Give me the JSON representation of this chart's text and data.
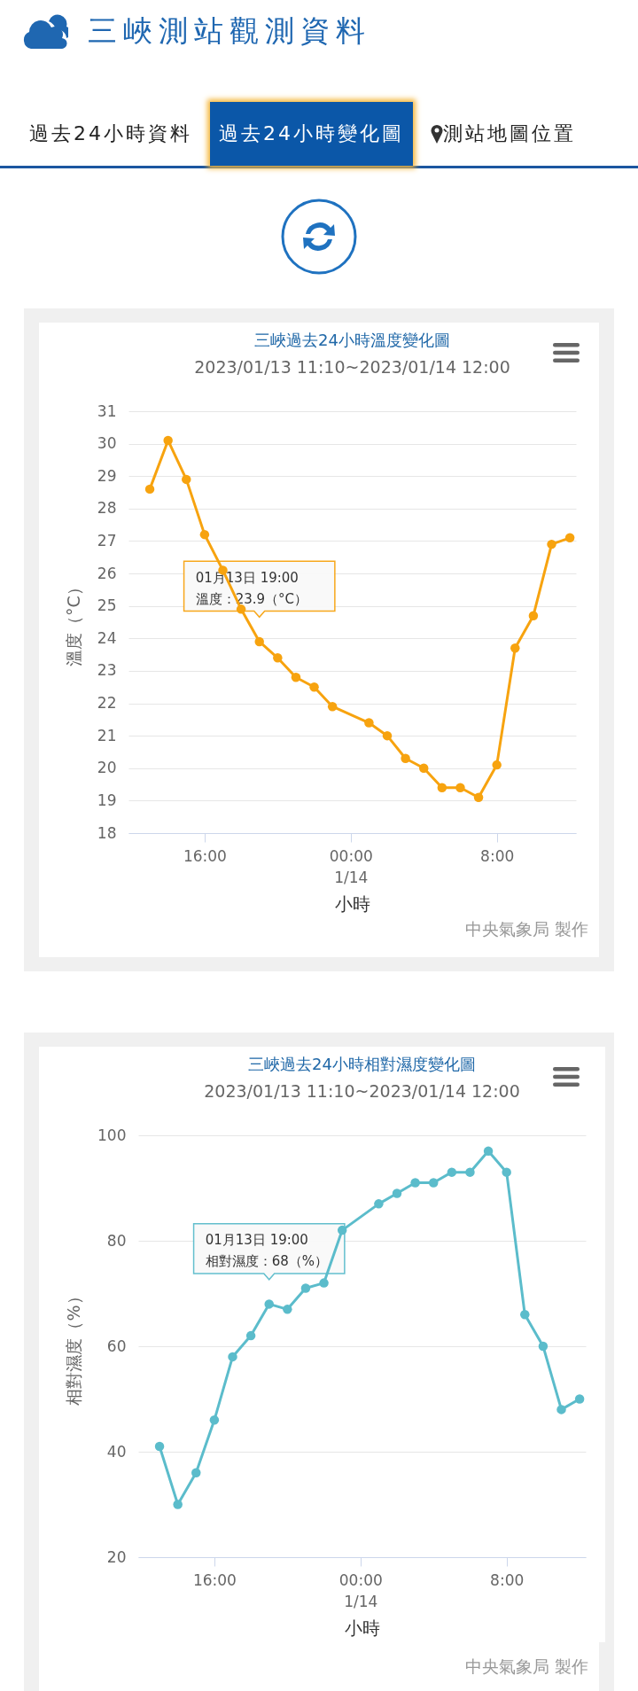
{
  "chart_data": [
    {
      "type": "other",
      "title": "三峽測站觀測資料",
      "annotations": [
        "過去24小時資料",
        "過去24小時變化圖",
        "測站地圖位置"
      ]
    },
    {
      "type": "line",
      "title": "三峽過去24小時溫度變化圖",
      "subtitle": "2023/01/13 11:10~2023/01/14 12:00",
      "xlabel": "小時",
      "ylabel": "溫度（°C）",
      "x": [
        "2023-01-13T13:00",
        "2023-01-13T14:00",
        "2023-01-13T15:00",
        "2023-01-13T16:00",
        "2023-01-13T17:00",
        "2023-01-13T18:00",
        "2023-01-13T19:00",
        "2023-01-13T20:00",
        "2023-01-13T21:00",
        "2023-01-13T22:00",
        "2023-01-13T23:00",
        "2023-01-14T01:00",
        "2023-01-14T02:00",
        "2023-01-14T03:00",
        "2023-01-14T04:00",
        "2023-01-14T05:00",
        "2023-01-14T06:00",
        "2023-01-14T07:00",
        "2023-01-14T08:00",
        "2023-01-14T09:00",
        "2023-01-14T10:00",
        "2023-01-14T11:00",
        "2023-01-14T12:00"
      ],
      "series": [
        {
          "color": "#f7a30f",
          "values": [
            28.6,
            30.1,
            28.9,
            27.2,
            26.1,
            24.9,
            23.9,
            23.4,
            22.8,
            22.5,
            21.9,
            21.4,
            21.0,
            20.3,
            20.0,
            19.4,
            19.4,
            19.1,
            20.1,
            23.7,
            24.7,
            26.9,
            27.1
          ]
        }
      ],
      "xlim": [
        "2023-01-13T11:50",
        "2023-01-14T12:20"
      ],
      "xticks": [
        {
          "value": "2023-01-13T16:00",
          "label": "16:00"
        },
        {
          "value": "2023-01-14T00:00",
          "label": "00:00\n1/14"
        },
        {
          "value": "2023-01-14T08:00",
          "label": "8:00"
        }
      ],
      "ylim": [
        18,
        31
      ],
      "yticks": [
        18,
        19,
        20,
        21,
        22,
        23,
        24,
        25,
        26,
        27,
        28,
        29,
        30,
        31
      ],
      "grid": "y",
      "marker": "circle",
      "annotations": [
        "中央氣象局 製作",
        {
          "text": "01月13日 19:00\n溫度：23.9（°C）",
          "x": "2023-01-13T19:00",
          "y": 23.9
        }
      ]
    },
    {
      "type": "line",
      "title": "三峽過去24小時相對濕度變化圖",
      "subtitle": "2023/01/13 11:10~2023/01/14 12:00",
      "xlabel": "小時",
      "ylabel": "相對濕度（%）",
      "x": [
        "2023-01-13T13:00",
        "2023-01-13T14:00",
        "2023-01-13T15:00",
        "2023-01-13T16:00",
        "2023-01-13T17:00",
        "2023-01-13T18:00",
        "2023-01-13T19:00",
        "2023-01-13T20:00",
        "2023-01-13T21:00",
        "2023-01-13T22:00",
        "2023-01-13T23:00",
        "2023-01-14T01:00",
        "2023-01-14T02:00",
        "2023-01-14T03:00",
        "2023-01-14T04:00",
        "2023-01-14T05:00",
        "2023-01-14T06:00",
        "2023-01-14T07:00",
        "2023-01-14T08:00",
        "2023-01-14T09:00",
        "2023-01-14T10:00",
        "2023-01-14T11:00",
        "2023-01-14T12:00"
      ],
      "series": [
        {
          "color": "#5bbccb",
          "values": [
            41,
            30,
            36,
            46,
            58,
            62,
            68,
            67,
            71,
            72,
            82,
            87,
            89,
            91,
            91,
            93,
            93,
            97,
            93,
            66,
            60,
            48,
            50
          ]
        }
      ],
      "xlim": [
        "2023-01-13T11:50",
        "2023-01-14T12:20"
      ],
      "xticks": [
        {
          "value": "2023-01-13T16:00",
          "label": "16:00"
        },
        {
          "value": "2023-01-14T00:00",
          "label": "00:00\n1/14"
        },
        {
          "value": "2023-01-14T08:00",
          "label": "8:00"
        }
      ],
      "ylim": [
        20,
        100
      ],
      "yticks": [
        20,
        40,
        60,
        80,
        100
      ],
      "grid": "y",
      "marker": "circle",
      "annotations": [
        "中央氣象局 製作",
        {
          "text": "01月13日 19:00\n相對濕度：68（%）",
          "x": "2023-01-13T19:00",
          "y": 68
        }
      ]
    }
  ]
}
